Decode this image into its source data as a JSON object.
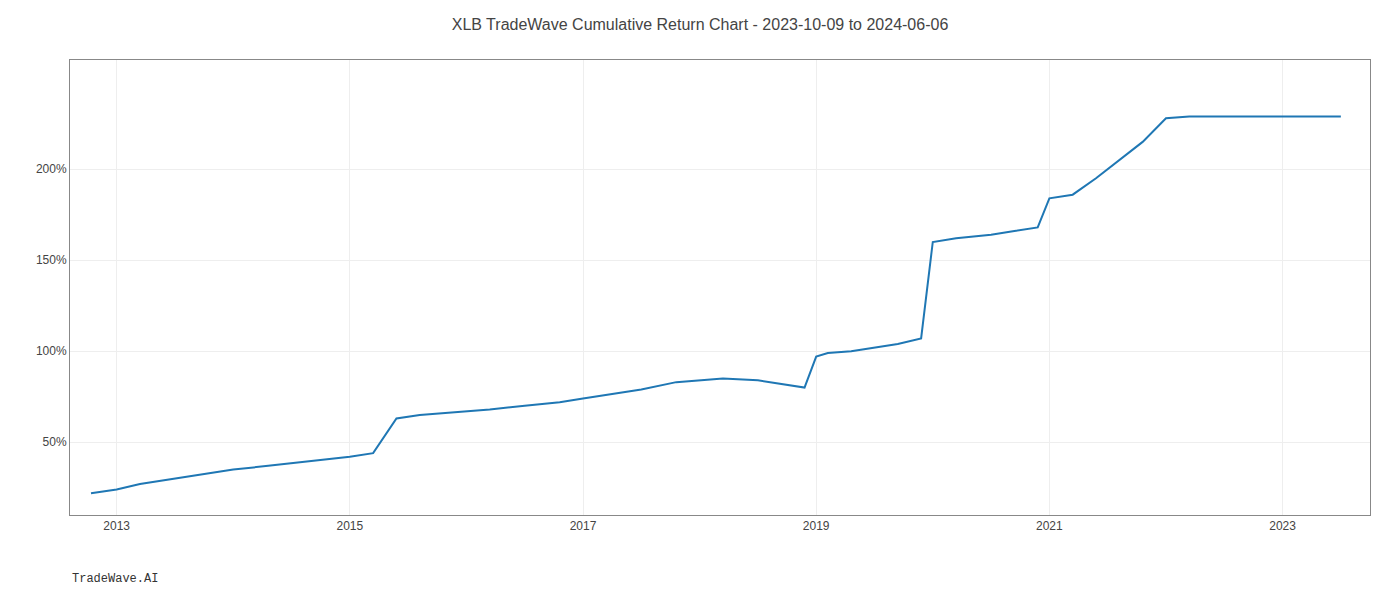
{
  "chart_data": {
    "type": "line",
    "title": "XLB TradeWave Cumulative Return Chart - 2023-10-09 to 2024-06-06",
    "annotations": [
      "TradeWave.AI"
    ],
    "color": "#1f77b4",
    "grid": true,
    "xlim": [
      2012.6,
      2023.75
    ],
    "ylim": [
      10,
      260
    ],
    "xticks": [
      2013,
      2015,
      2017,
      2019,
      2021,
      2023
    ],
    "yticks": [
      {
        "value": 50,
        "label": "50%"
      },
      {
        "value": 100,
        "label": "100%"
      },
      {
        "value": 150,
        "label": "150%"
      },
      {
        "value": 200,
        "label": "200%"
      }
    ],
    "x": [
      2012.78,
      2013.0,
      2013.2,
      2013.5,
      2013.8,
      2014.0,
      2014.3,
      2014.6,
      2014.9,
      2015.0,
      2015.2,
      2015.4,
      2015.6,
      2015.8,
      2016.0,
      2016.2,
      2016.5,
      2016.8,
      2017.0,
      2017.2,
      2017.5,
      2017.8,
      2018.0,
      2018.2,
      2018.5,
      2018.7,
      2018.9,
      2019.0,
      2019.1,
      2019.3,
      2019.5,
      2019.7,
      2019.9,
      2020.0,
      2020.2,
      2020.5,
      2020.7,
      2020.9,
      2021.0,
      2021.2,
      2021.4,
      2021.6,
      2021.8,
      2022.0,
      2022.2,
      2022.5,
      2022.8,
      2023.0,
      2023.3,
      2023.5
    ],
    "values": [
      22,
      24,
      27,
      30,
      33,
      35,
      37,
      39,
      41,
      42,
      44,
      63,
      65,
      66,
      67,
      68,
      70,
      72,
      74,
      76,
      79,
      83,
      84,
      85,
      84,
      82,
      80,
      97,
      99,
      100,
      102,
      104,
      107,
      160,
      162,
      164,
      166,
      168,
      184,
      186,
      195,
      205,
      215,
      228,
      229,
      229,
      229,
      229,
      229,
      229
    ]
  }
}
